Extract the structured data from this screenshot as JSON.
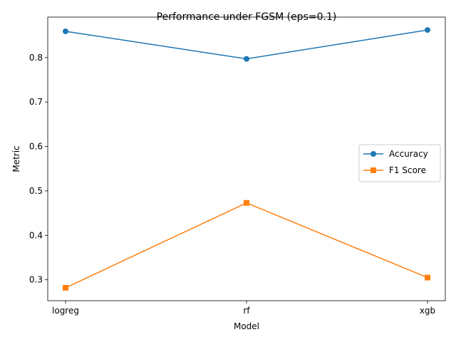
{
  "chart_data": {
    "type": "line",
    "title": "Performance under FGSM (eps=0.1)",
    "xlabel": "Model",
    "ylabel": "Metric",
    "categories": [
      "logreg",
      "rf",
      "xgb"
    ],
    "series": [
      {
        "name": "Accuracy",
        "values": [
          0.859,
          0.797,
          0.862
        ],
        "color": "#1f77b4",
        "marker": "circle"
      },
      {
        "name": "F1 Score",
        "values": [
          0.282,
          0.473,
          0.305
        ],
        "color": "#ff7f0e",
        "marker": "square"
      }
    ],
    "yticks": [
      "0.3",
      "0.4",
      "0.5",
      "0.6",
      "0.7",
      "0.8"
    ],
    "ylim": [
      0.253,
      0.891
    ],
    "grid": false,
    "legend_position": "center-right"
  }
}
